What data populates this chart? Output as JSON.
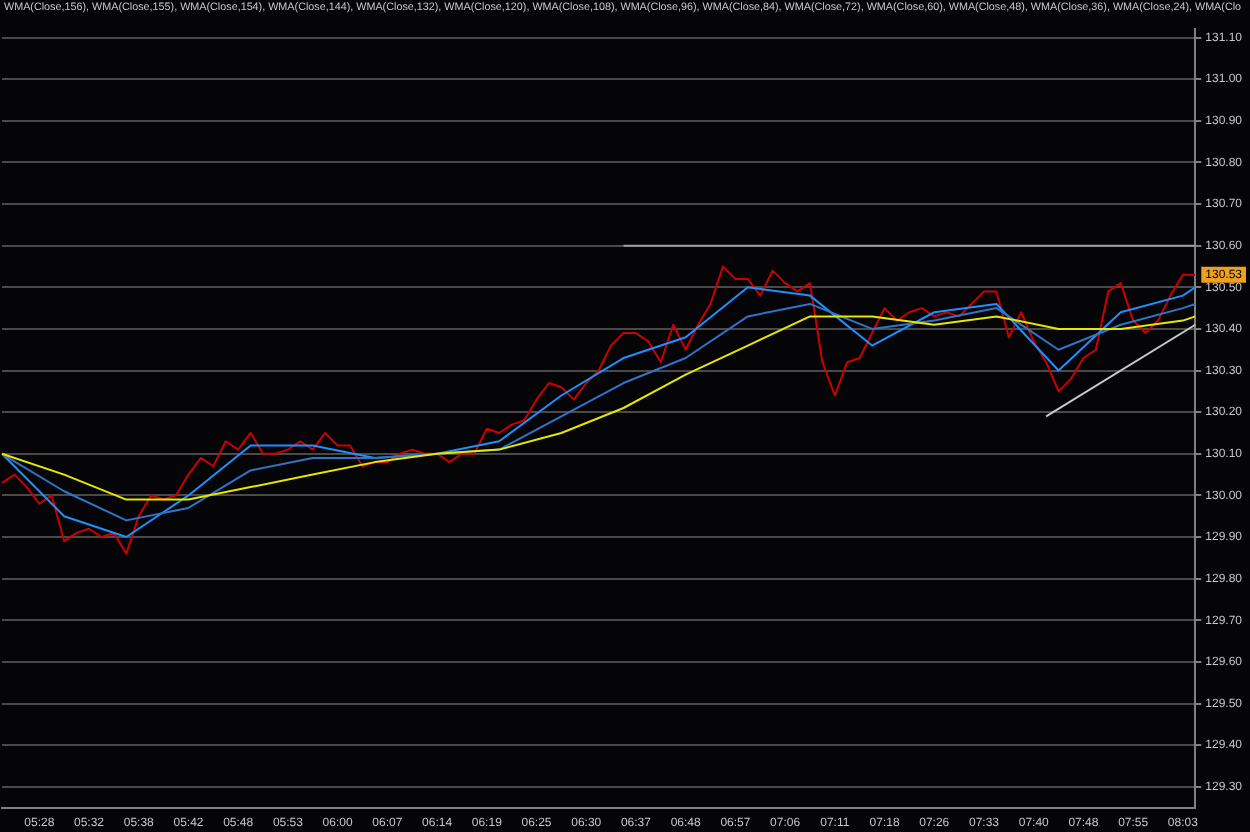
{
  "chart_data": {
    "type": "line",
    "title": "WMA(Close,156), WMA(Close,155), WMA(Close,154), WMA(Close,144), WMA(Close,132), WMA(Close,120), WMA(Close,108), WMA(Close,96), WMA(Close,84), WMA(Close,72), WMA(Close,60), WMA(Close,48), WMA(Close,36), WMA(Close,24), WMA(Clo",
    "categories": [
      null,
      null,
      null,
      "05:28",
      null,
      null,
      null,
      "05:32",
      null,
      null,
      null,
      "05:38",
      null,
      null,
      null,
      "05:42",
      null,
      null,
      null,
      "05:48",
      null,
      null,
      null,
      "05:53",
      null,
      null,
      null,
      "06:00",
      null,
      null,
      null,
      "06:07",
      null,
      null,
      null,
      "06:14",
      null,
      null,
      null,
      "06:19",
      null,
      null,
      null,
      "06:25",
      null,
      null,
      null,
      "06:30",
      null,
      null,
      null,
      "06:37",
      null,
      null,
      null,
      "06:48",
      null,
      null,
      null,
      "06:57",
      null,
      null,
      null,
      "07:06",
      null,
      null,
      null,
      "07:11",
      null,
      null,
      null,
      "07:18",
      null,
      null,
      null,
      "07:26",
      null,
      null,
      null,
      "07:33",
      null,
      null,
      null,
      "07:40",
      null,
      null,
      null,
      "07:48",
      null,
      null,
      null,
      "07:55",
      null,
      null,
      null,
      "08:03",
      null
    ],
    "series": [
      {
        "color": "#e6e600",
        "values": [
          130.1,
          null,
          null,
          null,
          null,
          130.05,
          null,
          null,
          null,
          null,
          129.99,
          null,
          null,
          null,
          null,
          129.99,
          null,
          null,
          null,
          null,
          130.02,
          null,
          null,
          null,
          null,
          130.05,
          null,
          null,
          null,
          null,
          130.08,
          null,
          null,
          null,
          null,
          130.1,
          null,
          null,
          null,
          null,
          130.11,
          null,
          null,
          null,
          null,
          130.15,
          null,
          null,
          null,
          null,
          130.21,
          null,
          null,
          null,
          null,
          130.29,
          null,
          null,
          null,
          null,
          130.36,
          null,
          null,
          null,
          null,
          130.43,
          null,
          null,
          null,
          null,
          130.43,
          null,
          null,
          null,
          null,
          130.41,
          null,
          null,
          null,
          null,
          130.43,
          null,
          null,
          null,
          null,
          130.4,
          null,
          null,
          null,
          null,
          130.4,
          null,
          null,
          null,
          null,
          130.42,
          130.43
        ]
      },
      {
        "color": "#2f74c8",
        "values": [
          130.1,
          null,
          null,
          null,
          null,
          130.01,
          null,
          null,
          null,
          null,
          129.94,
          null,
          null,
          null,
          null,
          129.97,
          null,
          null,
          null,
          null,
          130.06,
          null,
          null,
          null,
          null,
          130.09,
          null,
          null,
          null,
          null,
          130.09,
          null,
          null,
          null,
          null,
          130.1,
          null,
          null,
          null,
          null,
          130.11,
          null,
          null,
          null,
          null,
          130.19,
          null,
          null,
          null,
          null,
          130.27,
          null,
          null,
          null,
          null,
          130.33,
          null,
          null,
          null,
          null,
          130.43,
          null,
          null,
          null,
          null,
          130.46,
          null,
          null,
          null,
          null,
          130.4,
          null,
          null,
          null,
          null,
          130.42,
          null,
          null,
          null,
          null,
          130.45,
          null,
          null,
          null,
          null,
          130.35,
          null,
          null,
          null,
          null,
          130.41,
          null,
          null,
          null,
          null,
          130.45,
          130.46
        ]
      },
      {
        "color": "#1e90ff",
        "values": [
          130.1,
          null,
          null,
          null,
          null,
          129.95,
          null,
          null,
          null,
          null,
          129.9,
          null,
          null,
          null,
          null,
          130.0,
          null,
          null,
          null,
          null,
          130.12,
          null,
          null,
          null,
          null,
          130.12,
          null,
          null,
          null,
          null,
          130.09,
          null,
          null,
          null,
          null,
          130.1,
          null,
          null,
          null,
          null,
          130.13,
          null,
          null,
          null,
          null,
          130.24,
          null,
          null,
          null,
          null,
          130.33,
          null,
          null,
          null,
          null,
          130.38,
          null,
          null,
          null,
          null,
          130.5,
          null,
          null,
          null,
          null,
          130.48,
          null,
          null,
          null,
          null,
          130.36,
          null,
          null,
          null,
          null,
          130.44,
          null,
          null,
          null,
          null,
          130.46,
          null,
          null,
          null,
          null,
          130.3,
          null,
          null,
          null,
          null,
          130.44,
          null,
          null,
          null,
          null,
          130.48,
          130.5
        ]
      },
      {
        "color": "#cc0000",
        "values": [
          130.03,
          130.05,
          130.02,
          129.98,
          130.0,
          129.89,
          129.91,
          129.92,
          129.9,
          129.91,
          129.86,
          129.95,
          130.0,
          129.99,
          130.0,
          130.05,
          130.09,
          130.07,
          130.13,
          130.11,
          130.15,
          130.1,
          130.1,
          130.11,
          130.13,
          130.11,
          130.15,
          130.12,
          130.12,
          130.07,
          130.08,
          130.08,
          130.1,
          130.11,
          130.1,
          130.1,
          130.08,
          130.1,
          130.1,
          130.16,
          130.15,
          130.17,
          130.18,
          130.23,
          130.27,
          130.26,
          130.23,
          130.27,
          130.3,
          130.36,
          130.39,
          130.39,
          130.37,
          130.32,
          130.41,
          130.35,
          130.41,
          130.46,
          130.55,
          130.52,
          130.52,
          130.48,
          130.54,
          130.51,
          130.49,
          130.51,
          130.32,
          130.24,
          130.32,
          130.33,
          130.39,
          130.45,
          130.42,
          130.44,
          130.45,
          130.43,
          130.44,
          130.43,
          130.46,
          130.49,
          130.49,
          130.38,
          130.44,
          130.37,
          130.32,
          130.25,
          130.28,
          130.33,
          130.35,
          130.49,
          130.51,
          130.42,
          130.39,
          130.42,
          130.48,
          130.53,
          130.53
        ]
      },
      {
        "color": "#a0a0a0",
        "values": [
          null,
          null,
          null,
          null,
          null,
          null,
          null,
          null,
          null,
          null,
          null,
          null,
          null,
          null,
          null,
          null,
          null,
          null,
          null,
          null,
          null,
          null,
          null,
          null,
          null,
          null,
          null,
          null,
          null,
          null,
          null,
          null,
          null,
          null,
          null,
          null,
          null,
          null,
          null,
          null,
          null,
          null,
          null,
          null,
          null,
          null,
          null,
          null,
          null,
          null,
          130.6,
          130.6,
          130.6,
          130.6,
          130.6,
          130.6,
          130.6,
          130.6,
          130.6,
          130.6,
          130.6,
          130.6,
          130.6,
          130.6,
          130.6,
          130.6,
          130.6,
          130.6,
          130.6,
          130.6,
          130.6,
          130.6,
          130.6,
          130.6,
          130.6,
          130.6,
          130.6,
          130.6,
          130.6,
          130.6,
          130.6,
          130.6,
          130.6,
          130.6,
          130.6,
          130.6,
          130.6,
          130.6,
          130.6,
          130.6,
          130.6,
          130.6,
          130.6,
          130.6,
          130.6,
          130.6,
          130.6
        ]
      },
      {
        "color": "#c8c8c8",
        "values": [
          null,
          null,
          null,
          null,
          null,
          null,
          null,
          null,
          null,
          null,
          null,
          null,
          null,
          null,
          null,
          null,
          null,
          null,
          null,
          null,
          null,
          null,
          null,
          null,
          null,
          null,
          null,
          null,
          null,
          null,
          null,
          null,
          null,
          null,
          null,
          null,
          null,
          null,
          null,
          null,
          null,
          null,
          null,
          null,
          null,
          null,
          null,
          null,
          null,
          null,
          null,
          null,
          null,
          null,
          null,
          null,
          null,
          null,
          null,
          null,
          null,
          null,
          null,
          null,
          null,
          null,
          null,
          null,
          null,
          null,
          null,
          null,
          null,
          null,
          null,
          null,
          null,
          null,
          null,
          null,
          null,
          null,
          null,
          null,
          130.19,
          null,
          null,
          null,
          null,
          null,
          null,
          null,
          null,
          null,
          null,
          null,
          130.41
        ]
      }
    ],
    "ylim": [
      129.25,
      131.12
    ],
    "yticks": [
      {
        "value": 129.3,
        "label": "129.30"
      },
      {
        "value": 129.4,
        "label": "129.40"
      },
      {
        "value": 129.5,
        "label": "129.50"
      },
      {
        "value": 129.6,
        "label": "129.60"
      },
      {
        "value": 129.7,
        "label": "129.70"
      },
      {
        "value": 129.8,
        "label": "129.80"
      },
      {
        "value": 129.9,
        "label": "129.90"
      },
      {
        "value": 130.0,
        "label": "130.00"
      },
      {
        "value": 130.1,
        "label": "130.10"
      },
      {
        "value": 130.2,
        "label": "130.20"
      },
      {
        "value": 130.3,
        "label": "130.30"
      },
      {
        "value": 130.4,
        "label": "130.40"
      },
      {
        "value": 130.5,
        "label": "130.50"
      },
      {
        "value": 130.6,
        "label": "130.60"
      },
      {
        "value": 130.7,
        "label": "130.70"
      },
      {
        "value": 130.8,
        "label": "130.80"
      },
      {
        "value": 130.9,
        "label": "130.90"
      },
      {
        "value": 131.0,
        "label": "131.00"
      },
      {
        "value": 131.1,
        "label": "131.10"
      }
    ],
    "annotations": [
      "130.53"
    ],
    "grid": "y",
    "legend": false,
    "marker": "none",
    "line_style": "solid"
  }
}
